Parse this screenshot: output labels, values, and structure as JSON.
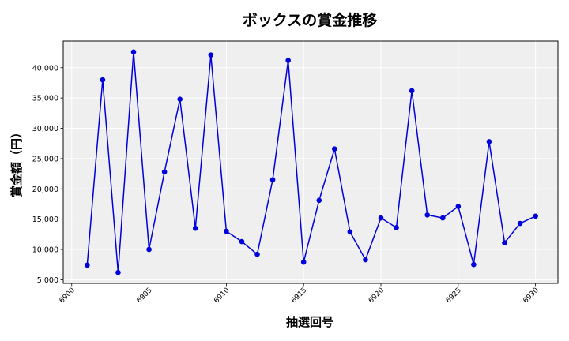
{
  "chart_data": {
    "type": "line",
    "title": "ボックスの賞金推移",
    "xlabel": "抽選回号",
    "ylabel": "賞金額（円）",
    "x": [
      6901,
      6902,
      6903,
      6904,
      6905,
      6906,
      6907,
      6908,
      6909,
      6910,
      6911,
      6912,
      6913,
      6914,
      6915,
      6916,
      6917,
      6918,
      6919,
      6920,
      6921,
      6922,
      6923,
      6924,
      6925,
      6926,
      6927,
      6928,
      6929,
      6930
    ],
    "series": [
      {
        "name": "",
        "values": [
          7400,
          38000,
          6200,
          42600,
          10000,
          22800,
          34800,
          13500,
          42100,
          13000,
          11300,
          9200,
          21500,
          41200,
          7900,
          18100,
          26600,
          12900,
          8300,
          15200,
          13600,
          36200,
          15700,
          15200,
          17100,
          7500,
          27800,
          11100,
          14300,
          15500
        ],
        "color": "#0000dd"
      }
    ],
    "xlim": [
      6899.45,
      6931.45
    ],
    "ylim": [
      4400,
      44400
    ],
    "x_ticks": [
      6900,
      6905,
      6910,
      6915,
      6920,
      6925,
      6930
    ],
    "x_tick_labels": [
      "6900",
      "6905",
      "6910",
      "6915",
      "6920",
      "6925",
      "6930"
    ],
    "y_ticks": [
      5000,
      10000,
      15000,
      20000,
      25000,
      30000,
      35000,
      40000
    ],
    "y_tick_labels": [
      "5,000",
      "10,000",
      "15,000",
      "20,000",
      "25,000",
      "30,000",
      "35,000",
      "40,000"
    ],
    "grid": true,
    "plot_background": "#efefef",
    "grid_color": "#ffffff"
  }
}
